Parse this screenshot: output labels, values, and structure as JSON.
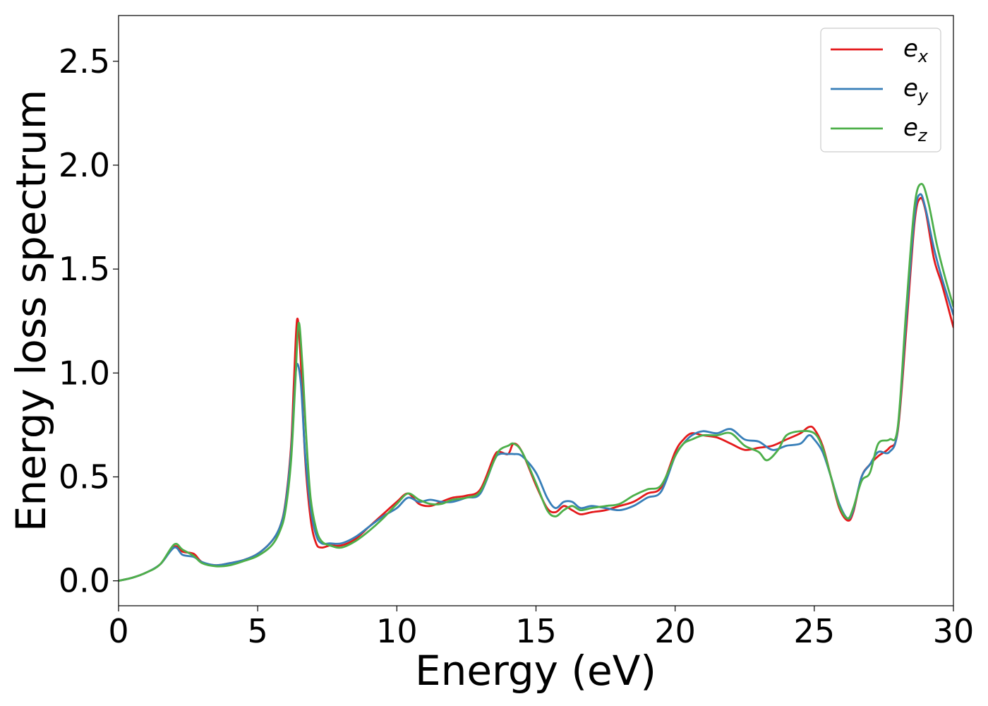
{
  "chart_data": {
    "type": "line",
    "title": "",
    "xlabel": "Energy (eV)",
    "ylabel": "Energy loss spectrum",
    "xlim": [
      0,
      30
    ],
    "ylim": [
      -0.12,
      2.72
    ],
    "xticks": [
      0,
      5,
      10,
      15,
      20,
      25,
      30
    ],
    "yticks": [
      0.0,
      0.5,
      1.0,
      1.5,
      2.0,
      2.5
    ],
    "xtick_labels": [
      "0",
      "5",
      "10",
      "15",
      "20",
      "25",
      "30"
    ],
    "ytick_labels": [
      "0.0",
      "0.5",
      "1.0",
      "1.5",
      "2.0",
      "2.5"
    ],
    "grid": false,
    "legend_position": "top-right",
    "series": [
      {
        "name": "e_x",
        "label_base": "e",
        "label_sub": "x",
        "color": "#e41a1c",
        "x": [
          0,
          0.5,
          1.0,
          1.5,
          2.0,
          2.3,
          2.7,
          3.0,
          3.5,
          4.0,
          4.5,
          5.0,
          5.5,
          5.8,
          6.0,
          6.2,
          6.3,
          6.42,
          6.55,
          6.7,
          6.9,
          7.1,
          7.3,
          7.6,
          8.0,
          8.5,
          9.0,
          9.5,
          10.0,
          10.4,
          10.8,
          11.2,
          11.6,
          12.0,
          12.5,
          13.0,
          13.5,
          13.7,
          14.0,
          14.2,
          14.5,
          15.0,
          15.4,
          15.7,
          16.0,
          16.3,
          16.6,
          17.0,
          17.5,
          18.0,
          18.5,
          19.0,
          19.5,
          20.0,
          20.3,
          20.6,
          21.0,
          21.5,
          22.0,
          22.5,
          23.0,
          23.5,
          24.0,
          24.5,
          24.8,
          25.0,
          25.3,
          25.6,
          25.9,
          26.2,
          26.4,
          26.7,
          27.0,
          27.3,
          27.7,
          28.0,
          28.3,
          28.6,
          28.8,
          29.0,
          29.3,
          29.6,
          30.0
        ],
        "y": [
          0.0,
          0.015,
          0.04,
          0.08,
          0.165,
          0.14,
          0.13,
          0.09,
          0.075,
          0.085,
          0.1,
          0.13,
          0.19,
          0.26,
          0.38,
          0.65,
          0.95,
          1.26,
          1.05,
          0.6,
          0.3,
          0.18,
          0.16,
          0.17,
          0.17,
          0.2,
          0.26,
          0.32,
          0.38,
          0.42,
          0.37,
          0.36,
          0.38,
          0.4,
          0.41,
          0.44,
          0.6,
          0.62,
          0.61,
          0.66,
          0.62,
          0.46,
          0.35,
          0.33,
          0.36,
          0.34,
          0.32,
          0.33,
          0.34,
          0.36,
          0.38,
          0.42,
          0.45,
          0.62,
          0.68,
          0.71,
          0.7,
          0.69,
          0.66,
          0.63,
          0.64,
          0.65,
          0.68,
          0.71,
          0.74,
          0.73,
          0.65,
          0.5,
          0.35,
          0.29,
          0.33,
          0.5,
          0.56,
          0.6,
          0.64,
          0.72,
          1.2,
          1.72,
          1.84,
          1.78,
          1.55,
          1.42,
          1.22
        ]
      },
      {
        "name": "e_y",
        "label_base": "e",
        "label_sub": "y",
        "color": "#377eb8",
        "x": [
          0,
          0.5,
          1.0,
          1.5,
          2.0,
          2.3,
          2.7,
          3.0,
          3.5,
          4.0,
          4.5,
          5.0,
          5.5,
          5.8,
          6.0,
          6.2,
          6.3,
          6.4,
          6.55,
          6.7,
          6.9,
          7.1,
          7.3,
          7.6,
          8.0,
          8.5,
          9.0,
          9.5,
          10.0,
          10.4,
          10.8,
          11.2,
          11.6,
          12.0,
          12.5,
          13.0,
          13.5,
          13.7,
          14.0,
          14.2,
          14.5,
          15.0,
          15.4,
          15.7,
          16.0,
          16.3,
          16.6,
          17.0,
          17.5,
          18.0,
          18.5,
          19.0,
          19.5,
          20.0,
          20.3,
          20.6,
          21.0,
          21.5,
          22.0,
          22.5,
          23.0,
          23.5,
          24.0,
          24.5,
          24.8,
          25.0,
          25.3,
          25.6,
          25.9,
          26.2,
          26.4,
          26.7,
          27.0,
          27.3,
          27.7,
          28.0,
          28.3,
          28.6,
          28.8,
          29.0,
          29.3,
          29.6,
          30.0
        ],
        "y": [
          0.0,
          0.015,
          0.04,
          0.08,
          0.16,
          0.125,
          0.115,
          0.09,
          0.075,
          0.085,
          0.1,
          0.13,
          0.19,
          0.26,
          0.37,
          0.62,
          0.85,
          1.04,
          0.95,
          0.62,
          0.35,
          0.22,
          0.18,
          0.18,
          0.18,
          0.21,
          0.26,
          0.31,
          0.35,
          0.4,
          0.38,
          0.39,
          0.38,
          0.38,
          0.4,
          0.42,
          0.58,
          0.61,
          0.61,
          0.61,
          0.6,
          0.52,
          0.4,
          0.35,
          0.38,
          0.38,
          0.35,
          0.36,
          0.35,
          0.34,
          0.36,
          0.4,
          0.43,
          0.6,
          0.66,
          0.7,
          0.72,
          0.71,
          0.73,
          0.68,
          0.67,
          0.63,
          0.65,
          0.66,
          0.7,
          0.68,
          0.62,
          0.5,
          0.37,
          0.3,
          0.34,
          0.5,
          0.56,
          0.62,
          0.62,
          0.73,
          1.25,
          1.75,
          1.86,
          1.79,
          1.6,
          1.45,
          1.28
        ]
      },
      {
        "name": "e_z",
        "label_base": "e",
        "label_sub": "z",
        "color": "#4daf4a",
        "x": [
          0,
          0.5,
          1.0,
          1.5,
          2.0,
          2.3,
          2.7,
          3.0,
          3.5,
          4.0,
          4.5,
          5.0,
          5.5,
          5.8,
          6.0,
          6.2,
          6.35,
          6.47,
          6.6,
          6.75,
          6.9,
          7.1,
          7.3,
          7.6,
          8.0,
          8.5,
          9.0,
          9.5,
          10.0,
          10.4,
          10.8,
          11.2,
          11.6,
          12.0,
          12.5,
          13.0,
          13.5,
          13.7,
          14.0,
          14.2,
          14.5,
          15.0,
          15.4,
          15.7,
          16.0,
          16.3,
          16.6,
          17.0,
          17.5,
          18.0,
          18.5,
          19.0,
          19.5,
          20.0,
          20.3,
          20.6,
          21.0,
          21.5,
          22.0,
          22.5,
          23.0,
          23.3,
          23.7,
          24.0,
          24.5,
          25.0,
          25.3,
          25.6,
          25.9,
          26.2,
          26.4,
          26.7,
          27.0,
          27.3,
          27.7,
          28.0,
          28.3,
          28.6,
          28.85,
          29.1,
          29.4,
          29.7,
          30.0
        ],
        "y": [
          0.0,
          0.015,
          0.04,
          0.08,
          0.175,
          0.15,
          0.12,
          0.085,
          0.07,
          0.075,
          0.095,
          0.12,
          0.17,
          0.24,
          0.34,
          0.58,
          0.95,
          1.24,
          1.05,
          0.68,
          0.4,
          0.25,
          0.19,
          0.17,
          0.16,
          0.19,
          0.24,
          0.3,
          0.37,
          0.42,
          0.39,
          0.37,
          0.37,
          0.39,
          0.4,
          0.43,
          0.58,
          0.63,
          0.65,
          0.66,
          0.62,
          0.47,
          0.34,
          0.31,
          0.34,
          0.36,
          0.34,
          0.35,
          0.36,
          0.37,
          0.41,
          0.44,
          0.46,
          0.6,
          0.66,
          0.68,
          0.7,
          0.7,
          0.71,
          0.65,
          0.62,
          0.58,
          0.63,
          0.7,
          0.72,
          0.71,
          0.64,
          0.5,
          0.36,
          0.3,
          0.35,
          0.48,
          0.52,
          0.66,
          0.68,
          0.74,
          1.3,
          1.8,
          1.91,
          1.82,
          1.62,
          1.46,
          1.32
        ]
      }
    ]
  }
}
